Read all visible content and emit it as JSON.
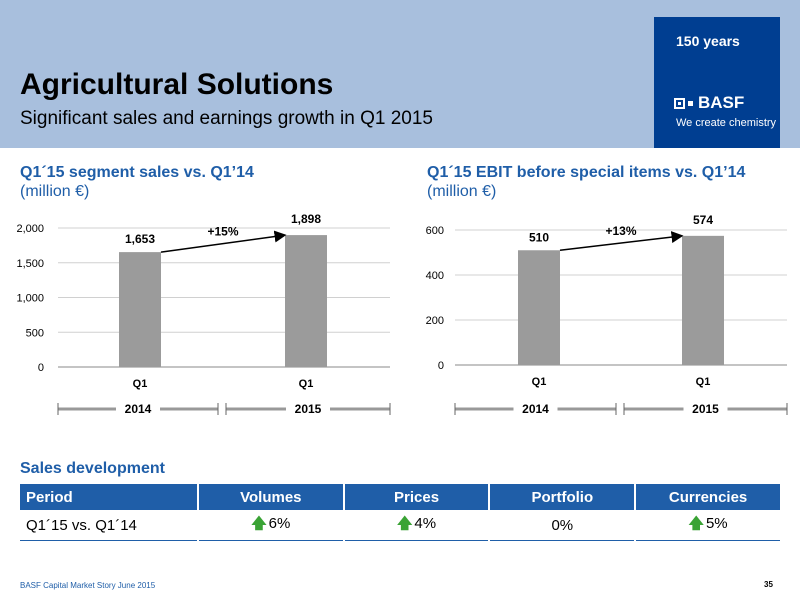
{
  "header": {
    "title": "Agricultural Solutions",
    "subtitle": "Significant sales and earnings growth in Q1 2015",
    "badge": "150 years",
    "logo_text": "BASF",
    "tagline": "We create chemistry",
    "background_color": "#a8bfdd",
    "brand_color": "#003e91"
  },
  "charts": [
    {
      "title": "Q1´15 segment sales vs. Q1’14",
      "unit": "(million €)"
    },
    {
      "title": "Q1´15 EBIT before special items vs. Q1’14",
      "unit": "(million €)"
    }
  ],
  "chart_data": [
    {
      "type": "bar",
      "title": "Q1´15 segment sales vs. Q1’14",
      "subtitle": "(million €)",
      "categories": [
        "Q1",
        "Q1"
      ],
      "groups": [
        "2014",
        "2015"
      ],
      "values": [
        1653,
        1898
      ],
      "value_labels": [
        "1,653",
        "1,898"
      ],
      "yticks": [
        "0",
        "500",
        "1,000",
        "1,500",
        "2,000"
      ],
      "ylim": [
        0,
        2000
      ],
      "annotation": "+15%",
      "bar_color": "#9b9b9b",
      "grid": true
    },
    {
      "type": "bar",
      "title": "Q1´15 EBIT before special items vs. Q1’14",
      "subtitle": "(million €)",
      "categories": [
        "Q1",
        "Q1"
      ],
      "groups": [
        "2014",
        "2015"
      ],
      "values": [
        510,
        574
      ],
      "value_labels": [
        "510",
        "574"
      ],
      "yticks": [
        "0",
        "200",
        "400",
        "600"
      ],
      "ylim": [
        0,
        600
      ],
      "annotation": "+13%",
      "bar_color": "#9b9b9b",
      "grid": true
    }
  ],
  "sales_development": {
    "title": "Sales development",
    "headers": [
      "Period",
      "Volumes",
      "Prices",
      "Portfolio",
      "Currencies"
    ],
    "row": {
      "period": "Q1´15 vs. Q1´14",
      "volumes": "6%",
      "prices": "4%",
      "portfolio": "0%",
      "currencies": "5%"
    },
    "header_color": "#1f5ea8",
    "arrow_icon": "green-up-arrow-icon"
  },
  "footer": {
    "text": "BASF Capital Market Story June 2015",
    "page": "35"
  }
}
